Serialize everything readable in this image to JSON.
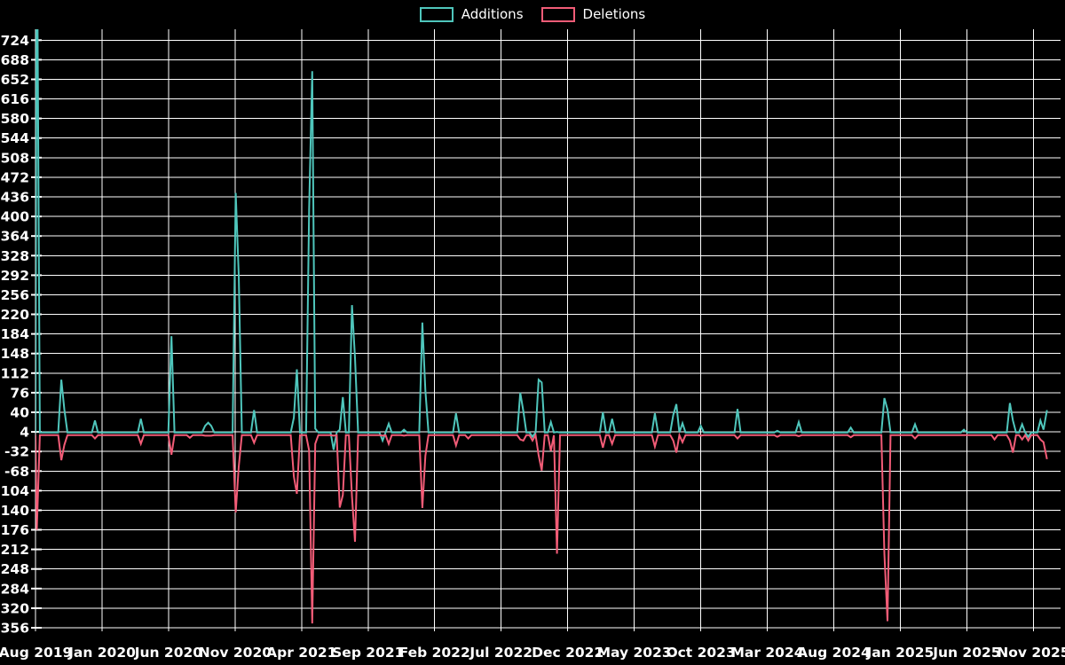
{
  "chart_data": {
    "type": "line",
    "title": "",
    "legend_labels": [
      "Additions",
      "Deletions"
    ],
    "legend_position": "top-center",
    "colors": {
      "additions": "#4fc6bc",
      "deletions": "#f25c77",
      "grid": "#ffffff",
      "text": "#ffffff",
      "background": "#000000"
    },
    "grid": true,
    "ylim": [
      -356,
      744
    ],
    "y_tick_step": 36,
    "y_ticks": [
      724,
      688,
      652,
      616,
      580,
      544,
      508,
      472,
      436,
      400,
      364,
      328,
      292,
      256,
      220,
      184,
      148,
      112,
      76,
      40,
      4,
      -32,
      -68,
      -104,
      -140,
      -176,
      -212,
      -248,
      -284,
      -320,
      -356
    ],
    "x_range": [
      "2019-08-01",
      "2026-01-01"
    ],
    "x_ticks": [
      {
        "label": "Aug 2019",
        "month_offset": 0
      },
      {
        "label": "Jan 2020",
        "month_offset": 5
      },
      {
        "label": "Jun 2020",
        "month_offset": 10
      },
      {
        "label": "Nov 2020",
        "month_offset": 15
      },
      {
        "label": "Apr 2021",
        "month_offset": 20
      },
      {
        "label": "Sep 2021",
        "month_offset": 25
      },
      {
        "label": "Feb 2022",
        "month_offset": 30
      },
      {
        "label": "Jul 2022",
        "month_offset": 35
      },
      {
        "label": "Dec 2022",
        "month_offset": 40
      },
      {
        "label": "May 2023",
        "month_offset": 45
      },
      {
        "label": "Oct 2023",
        "month_offset": 50
      },
      {
        "label": "Mar 2024",
        "month_offset": 55
      },
      {
        "label": "Aug 2024",
        "month_offset": 60
      },
      {
        "label": "Jan 2025",
        "month_offset": 65
      },
      {
        "label": "Jun 2025",
        "month_offset": 70
      },
      {
        "label": "Nov 2025",
        "month_offset": 75
      }
    ],
    "baseline": {
      "additions": 3,
      "deletions": -2
    },
    "clip_note": "first Additions spike exceeds the top of the visible axis and is clipped",
    "columns": [
      "week",
      "additions",
      "deletions"
    ],
    "points": [
      [
        "2019-08-04",
        1000,
        -176
      ],
      [
        "2019-09-29",
        100,
        -48
      ],
      [
        "2019-10-06",
        45,
        -20
      ],
      [
        "2019-12-15",
        25,
        -8
      ],
      [
        "2020-03-29",
        28,
        -18
      ],
      [
        "2020-06-07",
        180,
        -38
      ],
      [
        "2020-07-19",
        3,
        -7
      ],
      [
        "2020-08-23",
        15,
        -3
      ],
      [
        "2020-08-30",
        21,
        -3
      ],
      [
        "2020-09-06",
        15,
        -3
      ],
      [
        "2020-11-01",
        443,
        -144
      ],
      [
        "2020-11-08",
        292,
        -60
      ],
      [
        "2020-12-13",
        44,
        -16
      ],
      [
        "2021-03-14",
        30,
        -78
      ],
      [
        "2021-03-21",
        119,
        -110
      ],
      [
        "2021-04-18",
        412,
        -30
      ],
      [
        "2021-04-25",
        667,
        -348
      ],
      [
        "2021-05-02",
        10,
        -18
      ],
      [
        "2021-06-13",
        -29,
        -3
      ],
      [
        "2021-06-27",
        8,
        -135
      ],
      [
        "2021-07-04",
        68,
        -112
      ],
      [
        "2021-07-25",
        237,
        -115
      ],
      [
        "2021-08-01",
        140,
        -198
      ],
      [
        "2021-10-03",
        -12,
        -3
      ],
      [
        "2021-10-17",
        19,
        -18
      ],
      [
        "2021-11-21",
        8,
        -3
      ],
      [
        "2022-01-02",
        205,
        -136
      ],
      [
        "2022-01-09",
        80,
        -40
      ],
      [
        "2022-03-20",
        38,
        -21
      ],
      [
        "2022-04-17",
        3,
        -8
      ],
      [
        "2022-08-14",
        76,
        -10
      ],
      [
        "2022-08-21",
        42,
        -12
      ],
      [
        "2022-09-11",
        -5,
        -12
      ],
      [
        "2022-09-25",
        100,
        -39
      ],
      [
        "2022-10-02",
        95,
        -67
      ],
      [
        "2022-10-23",
        22,
        -31
      ],
      [
        "2022-11-06",
        4,
        -220
      ],
      [
        "2023-02-19",
        40,
        -25
      ],
      [
        "2023-03-12",
        28,
        -18
      ],
      [
        "2023-06-18",
        38,
        -23
      ],
      [
        "2023-07-30",
        35,
        -12
      ],
      [
        "2023-08-06",
        55,
        -34
      ],
      [
        "2023-08-20",
        20,
        -15
      ],
      [
        "2023-10-01",
        15,
        -3
      ],
      [
        "2023-12-24",
        46,
        -8
      ],
      [
        "2024-03-24",
        6,
        -5
      ],
      [
        "2024-05-12",
        22,
        -4
      ],
      [
        "2024-09-08",
        12,
        -6
      ],
      [
        "2024-11-24",
        66,
        -220
      ],
      [
        "2024-12-01",
        45,
        -344
      ],
      [
        "2025-02-02",
        18,
        -8
      ],
      [
        "2025-05-25",
        8,
        -2
      ],
      [
        "2025-08-03",
        3,
        -10
      ],
      [
        "2025-09-07",
        57,
        -12
      ],
      [
        "2025-09-14",
        25,
        -34
      ],
      [
        "2025-10-05",
        18,
        -10
      ],
      [
        "2025-10-19",
        -5,
        -12
      ],
      [
        "2025-11-16",
        25,
        -10
      ],
      [
        "2025-11-23",
        8,
        -15
      ],
      [
        "2025-12-01",
        44,
        -46
      ]
    ]
  }
}
